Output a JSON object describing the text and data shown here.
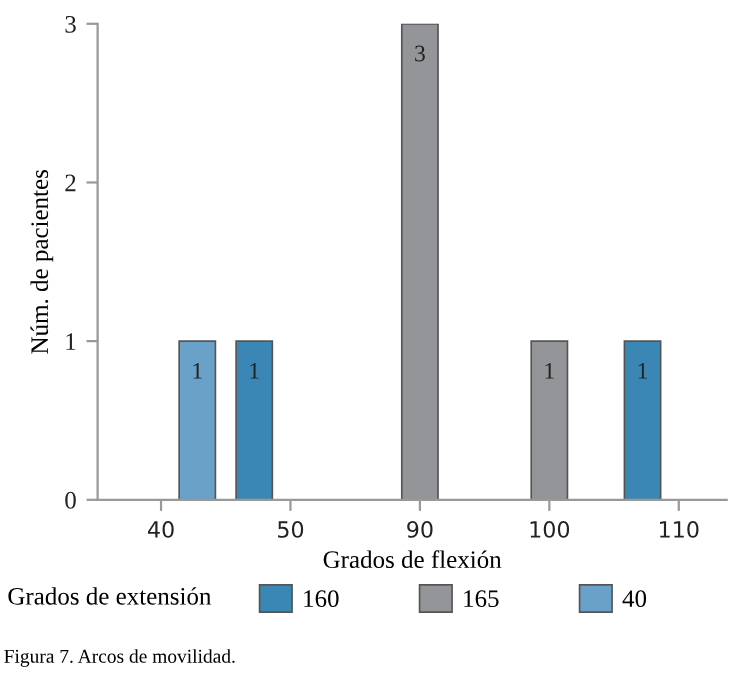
{
  "chart_data": {
    "type": "bar",
    "xlabel": "Grados de flexión",
    "ylabel": "Núm. de pacientes",
    "legend_title": "Grados de extensión",
    "categories": [
      "40",
      "50",
      "90",
      "100",
      "110"
    ],
    "ylim": [
      0,
      3
    ],
    "yticks": [
      0,
      1,
      2,
      3
    ],
    "series": [
      {
        "name": "160",
        "color": "#3a87b5",
        "values": [
          null,
          1,
          null,
          null,
          1
        ]
      },
      {
        "name": "165",
        "color": "#939598",
        "values": [
          null,
          null,
          3,
          1,
          null
        ]
      },
      {
        "name": "40",
        "color": "#6aa1c8",
        "values": [
          1,
          null,
          null,
          null,
          null
        ]
      }
    ],
    "data_labels": true,
    "grid": false,
    "legend": "bottom",
    "annotations": [
      "Figura 7. Arcos de movilidad."
    ]
  }
}
